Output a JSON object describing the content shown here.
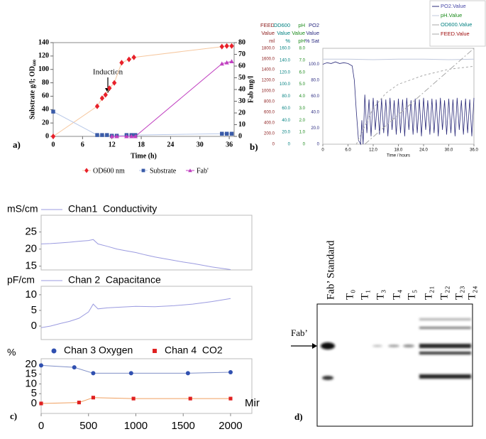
{
  "chart_data": [
    {
      "type": "line",
      "panel": "a)",
      "xlabel": "Time (h)",
      "ylabel": "Substrate g/l; OD₆₀₀",
      "y2label": "Fab mg/l",
      "annotation": "Induction",
      "xlim": [
        0,
        37
      ],
      "xticks": [
        0,
        6,
        12,
        18,
        24,
        30,
        36
      ],
      "ylim": [
        0,
        140
      ],
      "yticks": [
        0,
        20,
        40,
        60,
        80,
        100,
        120,
        140
      ],
      "y2lim": [
        0,
        80
      ],
      "y2ticks": [
        0,
        10,
        20,
        30,
        40,
        50,
        60,
        70,
        80
      ],
      "legend": "bottom",
      "series": [
        {
          "name": "OD600 nm",
          "color": "#e8202a",
          "line_color": "#f6c8a0",
          "marker": "diamond",
          "x": [
            0,
            9,
            10,
            10.7,
            11.5,
            12.5,
            14,
            15.5,
            16.5,
            34.5,
            35.5,
            36.5
          ],
          "values": [
            0,
            45,
            57,
            62,
            72,
            80,
            110,
            115,
            118,
            134,
            135,
            135
          ]
        },
        {
          "name": "Substrate",
          "color": "#3a5ba8",
          "line_color": "#b8c8e8",
          "marker": "square",
          "x": [
            0,
            9,
            10,
            11,
            12,
            13,
            15,
            16,
            16.8,
            34.5,
            35.5,
            36.5
          ],
          "values": [
            37,
            2,
            2,
            2,
            1,
            1,
            2,
            2,
            2,
            4,
            4,
            4
          ]
        },
        {
          "name": "Fab'",
          "color": "#c040c0",
          "line_color": "#c040c0",
          "marker": "triangle",
          "axis": "y2",
          "x": [
            12,
            13,
            15,
            16,
            16.8,
            34.5,
            35.5,
            36.5
          ],
          "values": [
            0,
            0,
            0,
            0,
            0,
            62,
            63,
            64
          ]
        }
      ]
    },
    {
      "type": "multi_axis",
      "panel": "b)",
      "xlabel": "Time / hours",
      "xlim": [
        0,
        36
      ],
      "xticks": [
        0,
        {
          "value": 6,
          "label": "6.0"
        },
        {
          "value": 12,
          "label": "12.0"
        },
        {
          "value": 18,
          "label": "18.0"
        },
        {
          "value": 24,
          "label": "24.0"
        },
        {
          "value": 30,
          "label": "30.0"
        },
        {
          "value": 36,
          "label": "36.0"
        }
      ],
      "axes": [
        {
          "name": "FEED",
          "quantity": "Value",
          "unit": "ml",
          "color": "#8b1a1a",
          "lim": [
            0,
            1800
          ],
          "ticks": [
            0,
            {
              "value": 200,
              "label": "200.0"
            },
            {
              "value": 400,
              "label": "400.0"
            },
            {
              "value": 600,
              "label": "600.0"
            },
            {
              "value": 800,
              "label": "800.0"
            },
            {
              "value": 1000,
              "label": "1000.0"
            },
            {
              "value": 1200,
              "label": "1200.0"
            },
            {
              "value": 1400,
              "label": "1400.0"
            },
            {
              "value": 1600,
              "label": "1600.0"
            },
            {
              "value": 1800,
              "label": "1800.0"
            }
          ]
        },
        {
          "name": "OD600",
          "quantity": "Value",
          "unit": "%",
          "color": "#008080",
          "lim": [
            0,
            160
          ],
          "ticks": [
            0,
            {
              "value": 20,
              "label": "20.0"
            },
            {
              "value": 40,
              "label": "40.0"
            },
            {
              "value": 60,
              "label": "60.0"
            },
            {
              "value": 80,
              "label": "80.0"
            },
            {
              "value": 100,
              "label": "100.0"
            },
            {
              "value": 120,
              "label": "120.0"
            },
            {
              "value": 140,
              "label": "140.0"
            },
            {
              "value": 160,
              "label": "160.0"
            }
          ]
        },
        {
          "name": "pH",
          "quantity": "Value",
          "unit": "pH",
          "color": "#1a8a1a",
          "lim": [
            0,
            8
          ],
          "ticks": [
            0,
            {
              "value": 1,
              "label": "1.0"
            },
            {
              "value": 2,
              "label": "2.0"
            },
            {
              "value": 3,
              "label": "3.0"
            },
            {
              "value": 4,
              "label": "4.0"
            },
            {
              "value": 5,
              "label": "5.0"
            },
            {
              "value": 6,
              "label": "6.0"
            },
            {
              "value": 7,
              "label": "7.0"
            },
            {
              "value": 8,
              "label": "8.0"
            }
          ]
        },
        {
          "name": "PO2",
          "quantity": "Value",
          "unit": "% Sat",
          "color": "#2a2a80",
          "lim": [
            0,
            120
          ],
          "ticks": [
            0,
            {
              "value": 20,
              "label": "20.0"
            },
            {
              "value": 40,
              "label": "40.0"
            },
            {
              "value": 60,
              "label": "60.0"
            },
            {
              "value": 80,
              "label": "80.0"
            },
            {
              "value": 100,
              "label": "100.0"
            }
          ]
        }
      ],
      "series": [
        {
          "name": "PO2.Value",
          "color": "#4a4aa8",
          "line_color": "#2b2b7a",
          "axis": 3,
          "x": [
            0,
            1,
            2,
            3,
            4,
            5,
            6,
            7,
            7.5,
            8,
            8.5,
            9,
            9.3,
            9.6,
            10,
            10.5,
            11,
            11.5,
            12,
            12.5,
            13,
            13.5,
            14,
            14.5,
            15,
            15.5,
            16,
            16.5,
            17,
            17.5,
            18,
            18.5,
            19,
            19.5,
            20,
            20.5,
            21,
            21.5,
            22,
            22.5,
            23,
            23.5,
            24,
            24.5,
            25,
            25.5,
            26,
            26.5,
            27,
            27.5,
            28,
            28.5,
            29,
            29.5,
            30,
            30.5,
            31,
            31.5,
            32,
            32.5,
            33,
            33.5,
            34,
            34.5,
            35,
            35.5,
            36
          ],
          "values": [
            100,
            102,
            101,
            103,
            101,
            102,
            101,
            98,
            80,
            40,
            5,
            0,
            30,
            0,
            62,
            14,
            56,
            10,
            58,
            18,
            55,
            12,
            57,
            14,
            56,
            10,
            58,
            18,
            55,
            12,
            57,
            14,
            56,
            10,
            58,
            18,
            55,
            12,
            57,
            14,
            56,
            10,
            58,
            18,
            55,
            12,
            57,
            14,
            56,
            10,
            58,
            18,
            55,
            12,
            57,
            14,
            56,
            10,
            58,
            18,
            55,
            12,
            57,
            14,
            56,
            10,
            58
          ]
        },
        {
          "name": "pH.Value",
          "color": "#1a8a1a",
          "line_color": "#c0c8dc",
          "axis": 2,
          "x": [
            0,
            6,
            12,
            18,
            24,
            30,
            36
          ],
          "values": [
            7.1,
            7.1,
            7.05,
            7.1,
            7.1,
            7.05,
            7.1
          ]
        },
        {
          "name": "OD600.Value",
          "color": "#008080",
          "line_color": "#a8a8a8",
          "axis": 1,
          "dash": "3,3",
          "x": [
            8,
            10,
            12,
            15,
            18,
            24,
            30,
            36
          ],
          "values": [
            0,
            30,
            60,
            85,
            100,
            115,
            125,
            130
          ]
        },
        {
          "name": "FEED.Value",
          "color": "#a01010",
          "line_color": "#a8a8a8",
          "axis": 0,
          "dash": "8,3,2,3",
          "x": [
            10,
            36
          ],
          "values": [
            0,
            1800
          ]
        }
      ]
    },
    {
      "type": "strip",
      "unit": "mS/cm",
      "name": "Chan1  Conductivity",
      "xlim": [
        0,
        2225
      ],
      "ylim": [
        13.9,
        29.9
      ],
      "yticks": [
        15,
        20,
        25
      ],
      "series": [
        {
          "name": "Chan1  Conductivity",
          "color": "#9b9be0",
          "x": [
            0,
            100,
            200,
            300,
            400,
            500,
            550,
            600,
            700,
            800,
            900,
            1000,
            1100,
            1200,
            1300,
            1400,
            1500,
            1600,
            1700,
            1800,
            1900,
            2000
          ],
          "values": [
            21.5,
            21.6,
            21.8,
            22,
            22.3,
            22.5,
            22.8,
            21.5,
            20.8,
            20,
            19.5,
            19,
            18.3,
            17.7,
            17.2,
            16.7,
            16.2,
            15.8,
            15.3,
            14.8,
            14.4,
            14
          ]
        }
      ]
    },
    {
      "type": "strip",
      "unit": "pF/cm",
      "name": "Chan 2  Capacitance",
      "xlim": [
        0,
        2225
      ],
      "ylim": [
        -4.3,
        12.7
      ],
      "yticks": [
        0,
        5,
        10
      ],
      "series": [
        {
          "name": "Chan 2  Capacitance",
          "color": "#9b9be0",
          "x": [
            0,
            100,
            200,
            300,
            400,
            500,
            550,
            600,
            700,
            800,
            1000,
            1200,
            1400,
            1600,
            1800,
            2000
          ],
          "values": [
            -0.5,
            0,
            0.8,
            1.5,
            2.5,
            4.5,
            7,
            5.5,
            5.8,
            6,
            6.3,
            6.2,
            6.5,
            7,
            7.8,
            8.8
          ]
        }
      ]
    },
    {
      "type": "strip",
      "panel": "c)",
      "unit": "%",
      "xlabel": "Mir",
      "xlim": [
        0,
        2225
      ],
      "ylim": [
        -5.1,
        22.9
      ],
      "yticks": [
        0,
        5,
        10,
        15,
        20
      ],
      "xticks": [
        0,
        500,
        1000,
        1500,
        2000
      ],
      "series": [
        {
          "name": "Chan 3 Oxygen",
          "color": "#3050b0",
          "line_color": "#8090c8",
          "marker": "circle",
          "x": [
            0,
            350,
            550,
            950,
            1550,
            2000
          ],
          "values": [
            19.5,
            18.5,
            15.5,
            15.5,
            15.5,
            16
          ]
        },
        {
          "name": "Chan 4  CO2",
          "color": "#e02020",
          "line_color": "#f0a060",
          "marker": "square",
          "x": [
            0,
            400,
            550,
            975,
            1575,
            2000
          ],
          "values": [
            0,
            0.5,
            3,
            2.5,
            2.5,
            2.5
          ]
        }
      ]
    }
  ],
  "gel": {
    "panel": "d)",
    "marker": "Fab’",
    "lanes": [
      "Fab’ Standard",
      "T₀",
      "T₁",
      "T₃",
      "T₄",
      "T₅",
      "T₂₁",
      "T₂₂",
      "T₂₃",
      "T₂₄"
    ]
  }
}
